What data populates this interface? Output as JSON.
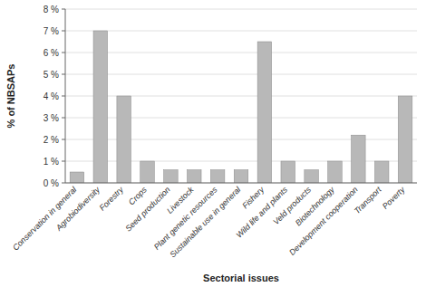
{
  "chart_data": {
    "type": "bar",
    "categories": [
      "Conservation in general",
      "Agrobiodiversity",
      "Forestry",
      "Crops",
      "Seed production",
      "Livestock",
      "Plant genetic resources",
      "Sustainable use in general",
      "Fishery",
      "Wild life and plants",
      "Veld products",
      "Biotechnology",
      "Development cooperation",
      "Transport",
      "Poverty"
    ],
    "values": [
      0.5,
      7.0,
      4.0,
      1.0,
      0.6,
      0.6,
      0.6,
      0.6,
      6.5,
      1.0,
      0.6,
      1.0,
      2.2,
      1.0,
      4.0
    ],
    "color": "#b8b8b8",
    "xlabel": "Sectorial issues",
    "ylabel": "% of NBSAPs",
    "ylim": [
      0,
      8
    ],
    "yticks": [
      {
        "value": 0,
        "label": "0 %"
      },
      {
        "value": 1,
        "label": "1 %"
      },
      {
        "value": 2,
        "label": "2 %"
      },
      {
        "value": 3,
        "label": "3 %"
      },
      {
        "value": 4,
        "label": "4 %"
      },
      {
        "value": 5,
        "label": "5 %"
      },
      {
        "value": 6,
        "label": "6 %"
      },
      {
        "value": 7,
        "label": "7 %"
      },
      {
        "value": 8,
        "label": "8 %"
      }
    ],
    "grid": true
  }
}
